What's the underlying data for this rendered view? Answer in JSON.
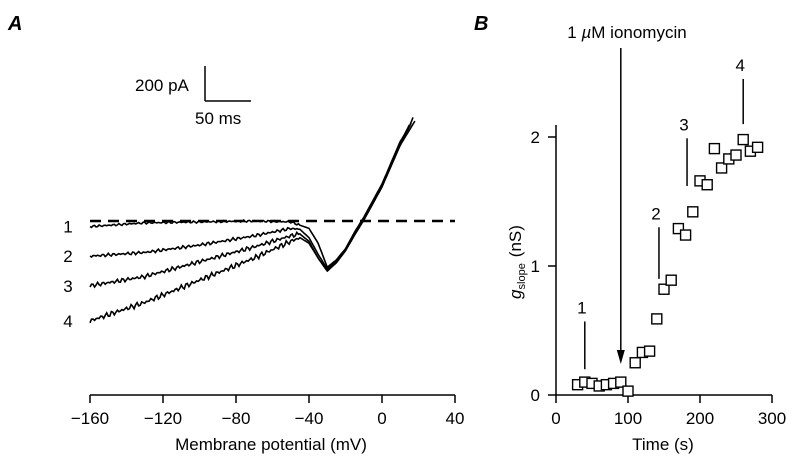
{
  "panels": {
    "a": {
      "letter": "A"
    },
    "b": {
      "letter": "B"
    }
  },
  "chart_data": [
    {
      "type": "line",
      "panel": "A",
      "xlabel": "Membrane potential (mV)",
      "xlim": [
        -160,
        40
      ],
      "xticks": [
        "−160",
        "−120",
        "−80",
        "−40",
        "0",
        "40"
      ],
      "xtick_values": [
        -160,
        -120,
        -80,
        -40,
        0,
        40
      ],
      "y_unit": "pA",
      "ylim": [
        -600,
        560
      ],
      "scale_bar": {
        "current_label": "200 pA",
        "time_label": "50 ms"
      },
      "reference_line": {
        "style": "dashed",
        "y": 0
      },
      "series": [
        {
          "name": "1",
          "x": [
            -160,
            -130,
            -100,
            -70,
            -50,
            -40,
            -35,
            -30,
            -25,
            -20,
            -15,
            -10,
            0,
            10,
            15,
            17
          ],
          "y": [
            -30,
            -10,
            -5,
            0,
            -5,
            -40,
            -120,
            -250,
            -210,
            -150,
            -60,
            20,
            200,
            430,
            510,
            560
          ]
        },
        {
          "name": "2",
          "x": [
            -160,
            -130,
            -100,
            -70,
            -50,
            -45,
            -40,
            -35,
            -30,
            -25,
            -20,
            -15,
            -10,
            0,
            10,
            15
          ],
          "y": [
            -190,
            -170,
            -130,
            -80,
            -40,
            -45,
            -90,
            -180,
            -260,
            -220,
            -160,
            -70,
            10,
            190,
            420,
            520
          ]
        },
        {
          "name": "3",
          "x": [
            -160,
            -130,
            -100,
            -70,
            -50,
            -45,
            -40,
            -35,
            -30,
            -25,
            -20,
            -15,
            -10,
            0,
            10,
            16
          ],
          "y": [
            -350,
            -300,
            -220,
            -140,
            -80,
            -70,
            -110,
            -200,
            -270,
            -225,
            -160,
            -75,
            5,
            185,
            415,
            530
          ]
        },
        {
          "name": "4",
          "x": [
            -160,
            -130,
            -100,
            -70,
            -50,
            -45,
            -40,
            -35,
            -30,
            -25,
            -20,
            -15,
            -10,
            0,
            10,
            18
          ],
          "y": [
            -540,
            -440,
            -320,
            -200,
            -110,
            -90,
            -120,
            -200,
            -270,
            -225,
            -160,
            -75,
            5,
            185,
            410,
            540
          ]
        }
      ]
    },
    {
      "type": "scatter",
      "panel": "B",
      "xlabel": "Time (s)",
      "ylabel_main": "g",
      "ylabel_sub": "slope",
      "ylabel_unit": "(nS)",
      "xlim": [
        0,
        300
      ],
      "ylim": [
        0,
        2
      ],
      "xticks": [
        0,
        100,
        200,
        300
      ],
      "yticks": [
        0,
        1,
        2
      ],
      "points": [
        [
          30,
          0.08
        ],
        [
          40,
          0.1
        ],
        [
          50,
          0.09
        ],
        [
          60,
          0.07
        ],
        [
          70,
          0.08
        ],
        [
          80,
          0.09
        ],
        [
          90,
          0.1
        ],
        [
          100,
          0.03
        ],
        [
          110,
          0.25
        ],
        [
          120,
          0.33
        ],
        [
          130,
          0.34
        ],
        [
          140,
          0.59
        ],
        [
          150,
          0.82
        ],
        [
          160,
          0.89
        ],
        [
          170,
          1.29
        ],
        [
          180,
          1.24
        ],
        [
          190,
          1.42
        ],
        [
          200,
          1.66
        ],
        [
          210,
          1.63
        ],
        [
          220,
          1.91
        ],
        [
          230,
          1.76
        ],
        [
          240,
          1.83
        ],
        [
          250,
          1.86
        ],
        [
          260,
          1.98
        ],
        [
          270,
          1.89
        ],
        [
          280,
          1.92
        ]
      ],
      "annotations": [
        {
          "label": "1",
          "x": 40,
          "y_from": 0.2,
          "y_to": 0.57
        },
        {
          "label": "2",
          "x": 143,
          "y_from": 0.9,
          "y_to": 1.3
        },
        {
          "label": "3",
          "x": 182,
          "y_from": 1.62,
          "y_to": 1.99
        },
        {
          "label": "4",
          "x": 260,
          "y_from": 2.1,
          "y_to": 2.45
        }
      ],
      "arrow": {
        "x": 90,
        "label_pre": "1 ",
        "label_mu": "µ",
        "label_post": "M ionomycin"
      }
    }
  ]
}
